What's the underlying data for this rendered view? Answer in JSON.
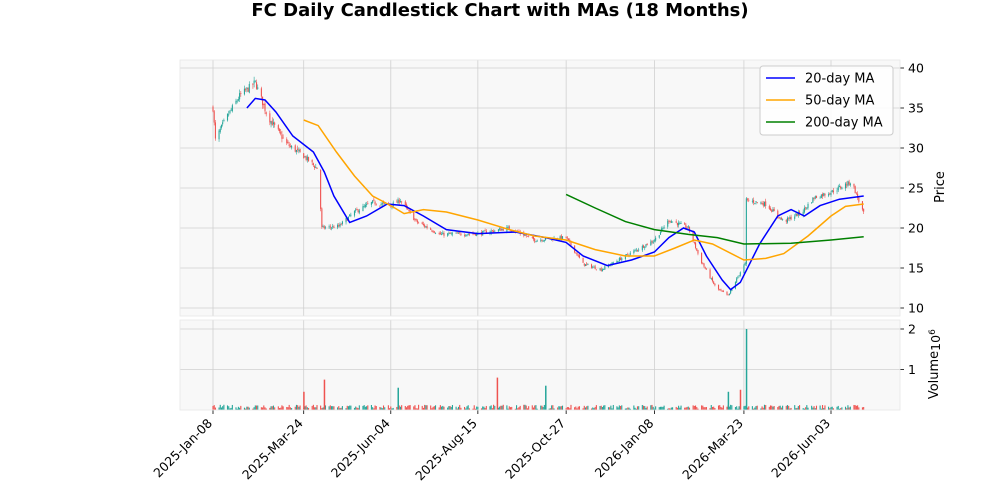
{
  "chart_data": {
    "type": "candlestick",
    "title": "FC Daily Candlestick Chart with MAs (18 Months)",
    "ylabel": "Price",
    "volume_label": "Volume",
    "volume_exponent_label": "1e6",
    "ylim": [
      9,
      41
    ],
    "volume_ylim": [
      0,
      2.0
    ],
    "grid": true,
    "legend_position": "upper right",
    "x_ticks": [
      "2025-Jan-08",
      "2025-Mar-24",
      "2025-Jun-04",
      "2025-Aug-15",
      "2025-Oct-27",
      "2026-Jan-08",
      "2026-Mar-23",
      "2026-Jun-03"
    ],
    "y_ticks": [
      10,
      15,
      20,
      25,
      30,
      35,
      40
    ],
    "volume_ticks": [
      1,
      2
    ],
    "colors": {
      "up": "#26a69a",
      "down": "#ef5350",
      "ma20": "#0000ff",
      "ma50": "#ffa500",
      "ma200": "#008000",
      "panel_bg": "#f8f8f8",
      "grid": "#d0d0d0"
    },
    "price_waypoints": [
      {
        "x": "2025-Jan-08",
        "close": 35.0
      },
      {
        "x": "2025-Jan-10",
        "close": 31.0
      },
      {
        "x": "2025-Jan-18",
        "close": 33.5
      },
      {
        "x": "2025-Jan-30",
        "close": 36.5
      },
      {
        "x": "2025-Feb-12",
        "close": 38.2
      },
      {
        "x": "2025-Feb-22",
        "close": 34.0
      },
      {
        "x": "2025-Mar-10",
        "close": 30.5
      },
      {
        "x": "2025-Mar-24",
        "close": 29.0
      },
      {
        "x": "2025-Apr-05",
        "close": 27.3
      },
      {
        "x": "2025-Apr-08",
        "close": 20.0
      },
      {
        "x": "2025-Apr-22",
        "close": 20.2
      },
      {
        "x": "2025-May-05",
        "close": 22.0
      },
      {
        "x": "2025-May-20",
        "close": 23.2
      },
      {
        "x": "2025-Jun-04",
        "close": 22.8
      },
      {
        "x": "2025-Jun-12",
        "close": 23.5
      },
      {
        "x": "2025-Jun-25",
        "close": 20.8
      },
      {
        "x": "2025-Jul-15",
        "close": 19.2
      },
      {
        "x": "2025-Aug-15",
        "close": 19.3
      },
      {
        "x": "2025-Sep-10",
        "close": 20.0
      },
      {
        "x": "2025-Oct-01",
        "close": 18.5
      },
      {
        "x": "2025-Oct-27",
        "close": 18.8
      },
      {
        "x": "2025-Nov-10",
        "close": 15.5
      },
      {
        "x": "2025-Nov-25",
        "close": 14.8
      },
      {
        "x": "2025-Dec-15",
        "close": 16.5
      },
      {
        "x": "2026-Jan-08",
        "close": 18.5
      },
      {
        "x": "2026-Jan-20",
        "close": 21.0
      },
      {
        "x": "2026-Feb-05",
        "close": 20.0
      },
      {
        "x": "2026-Feb-15",
        "close": 16.0
      },
      {
        "x": "2026-Feb-28",
        "close": 12.5
      },
      {
        "x": "2026-Mar-10",
        "close": 11.5
      },
      {
        "x": "2026-Mar-20",
        "close": 14.5
      },
      {
        "x": "2026-Mar-24",
        "close": 15.5
      },
      {
        "x": "2026-Mar-25",
        "close": 23.5
      },
      {
        "x": "2026-Apr-10",
        "close": 23.0
      },
      {
        "x": "2026-Apr-25",
        "close": 20.8
      },
      {
        "x": "2026-May-10",
        "close": 22.0
      },
      {
        "x": "2026-May-20",
        "close": 23.8
      },
      {
        "x": "2026-Jun-03",
        "close": 24.5
      },
      {
        "x": "2026-Jun-20",
        "close": 25.8
      },
      {
        "x": "2026-Jun-30",
        "close": 21.8
      }
    ],
    "series": [
      {
        "name": "20-day MA",
        "color": "#0000ff",
        "points": [
          {
            "x": "2025-Feb-05",
            "y": 35.0
          },
          {
            "x": "2025-Feb-12",
            "y": 36.2
          },
          {
            "x": "2025-Feb-20",
            "y": 36.0
          },
          {
            "x": "2025-Mar-01",
            "y": 34.5
          },
          {
            "x": "2025-Mar-15",
            "y": 31.5
          },
          {
            "x": "2025-Apr-01",
            "y": 29.5
          },
          {
            "x": "2025-Apr-10",
            "y": 27.0
          },
          {
            "x": "2025-Apr-18",
            "y": 24.0
          },
          {
            "x": "2025-May-01",
            "y": 20.7
          },
          {
            "x": "2025-May-15",
            "y": 21.5
          },
          {
            "x": "2025-Jun-01",
            "y": 23.0
          },
          {
            "x": "2025-Jun-15",
            "y": 22.8
          },
          {
            "x": "2025-Jul-01",
            "y": 21.5
          },
          {
            "x": "2025-Jul-20",
            "y": 19.8
          },
          {
            "x": "2025-Aug-15",
            "y": 19.3
          },
          {
            "x": "2025-Sep-15",
            "y": 19.5
          },
          {
            "x": "2025-Oct-10",
            "y": 18.8
          },
          {
            "x": "2025-Oct-27",
            "y": 18.2
          },
          {
            "x": "2025-Nov-10",
            "y": 16.5
          },
          {
            "x": "2025-Nov-30",
            "y": 15.3
          },
          {
            "x": "2025-Dec-20",
            "y": 16.0
          },
          {
            "x": "2026-Jan-08",
            "y": 17.0
          },
          {
            "x": "2026-Jan-20",
            "y": 18.8
          },
          {
            "x": "2026-Feb-01",
            "y": 20.0
          },
          {
            "x": "2026-Feb-10",
            "y": 19.5
          },
          {
            "x": "2026-Feb-20",
            "y": 16.5
          },
          {
            "x": "2026-Mar-05",
            "y": 13.5
          },
          {
            "x": "2026-Mar-12",
            "y": 12.3
          },
          {
            "x": "2026-Mar-20",
            "y": 13.2
          },
          {
            "x": "2026-Apr-05",
            "y": 18.0
          },
          {
            "x": "2026-Apr-20",
            "y": 21.5
          },
          {
            "x": "2026-May-01",
            "y": 22.3
          },
          {
            "x": "2026-May-12",
            "y": 21.5
          },
          {
            "x": "2026-May-25",
            "y": 22.8
          },
          {
            "x": "2026-Jun-10",
            "y": 23.6
          },
          {
            "x": "2026-Jun-30",
            "y": 24.0
          }
        ]
      },
      {
        "name": "50-day MA",
        "color": "#ffa500",
        "points": [
          {
            "x": "2025-Mar-24",
            "y": 33.5
          },
          {
            "x": "2025-Apr-05",
            "y": 32.8
          },
          {
            "x": "2025-Apr-20",
            "y": 29.5
          },
          {
            "x": "2025-May-05",
            "y": 26.5
          },
          {
            "x": "2025-May-20",
            "y": 24.0
          },
          {
            "x": "2025-Jun-04",
            "y": 22.8
          },
          {
            "x": "2025-Jun-15",
            "y": 21.8
          },
          {
            "x": "2025-Jul-01",
            "y": 22.3
          },
          {
            "x": "2025-Jul-20",
            "y": 22.0
          },
          {
            "x": "2025-Aug-15",
            "y": 21.0
          },
          {
            "x": "2025-Sep-10",
            "y": 19.8
          },
          {
            "x": "2025-Oct-01",
            "y": 19.0
          },
          {
            "x": "2025-Oct-27",
            "y": 18.5
          },
          {
            "x": "2025-Nov-20",
            "y": 17.3
          },
          {
            "x": "2025-Dec-15",
            "y": 16.5
          },
          {
            "x": "2026-Jan-08",
            "y": 16.5
          },
          {
            "x": "2026-Jan-25",
            "y": 17.5
          },
          {
            "x": "2026-Feb-10",
            "y": 18.5
          },
          {
            "x": "2026-Feb-25",
            "y": 18.0
          },
          {
            "x": "2026-Mar-23",
            "y": 16.0
          },
          {
            "x": "2026-Apr-10",
            "y": 16.2
          },
          {
            "x": "2026-Apr-25",
            "y": 16.8
          },
          {
            "x": "2026-May-15",
            "y": 19.0
          },
          {
            "x": "2026-Jun-03",
            "y": 21.5
          },
          {
            "x": "2026-Jun-15",
            "y": 22.7
          },
          {
            "x": "2026-Jun-30",
            "y": 23.0
          }
        ]
      },
      {
        "name": "200-day MA",
        "color": "#008000",
        "points": [
          {
            "x": "2025-Oct-27",
            "y": 24.2
          },
          {
            "x": "2025-Nov-20",
            "y": 22.5
          },
          {
            "x": "2025-Dec-15",
            "y": 20.8
          },
          {
            "x": "2026-Jan-08",
            "y": 19.8
          },
          {
            "x": "2026-Feb-05",
            "y": 19.2
          },
          {
            "x": "2026-Mar-01",
            "y": 18.8
          },
          {
            "x": "2026-Mar-23",
            "y": 18.0
          },
          {
            "x": "2026-May-01",
            "y": 18.1
          },
          {
            "x": "2026-Jun-03",
            "y": 18.5
          },
          {
            "x": "2026-Jun-30",
            "y": 18.9
          }
        ]
      }
    ],
    "volume_spikes": [
      {
        "x": "2026-Mar-25",
        "value": 2.0,
        "direction": "up"
      },
      {
        "x": "2025-Aug-31",
        "value": 0.8,
        "direction": "down"
      },
      {
        "x": "2025-Apr-10",
        "value": 0.75,
        "direction": "down"
      },
      {
        "x": "2025-Jun-10",
        "value": 0.55,
        "direction": "up"
      },
      {
        "x": "2025-Oct-10",
        "value": 0.6,
        "direction": "up"
      },
      {
        "x": "2026-Mar-20",
        "value": 0.5,
        "direction": "down"
      },
      {
        "x": "2025-Mar-24",
        "value": 0.45,
        "direction": "down"
      },
      {
        "x": "2026-Mar-10",
        "value": 0.45,
        "direction": "up"
      }
    ]
  }
}
